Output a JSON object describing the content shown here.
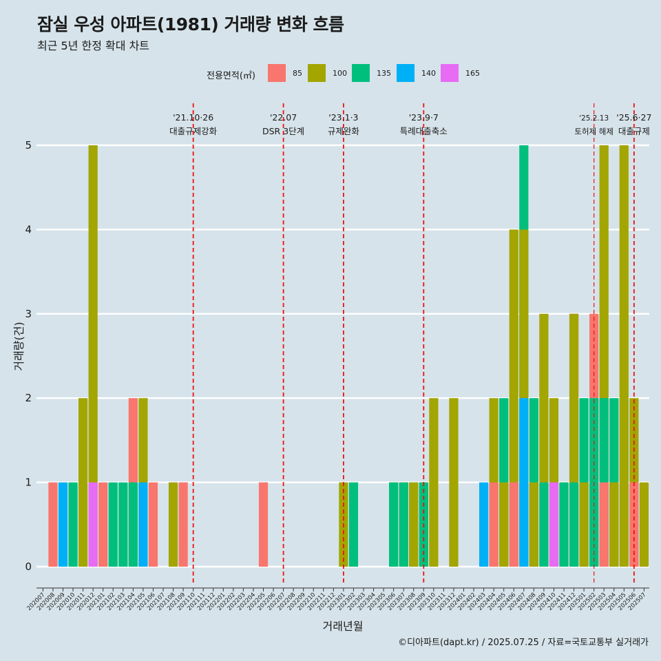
{
  "title": "잠실 우성 아파트(1981) 거래량 변화 흐름",
  "subtitle": "최근 5년 한정 확대 차트",
  "caption": "©디아파트(dapt.kr) / 2025.07.25 / 자료=국토교통부 실거래가",
  "legend": {
    "title": "전용면적(㎡)",
    "items": [
      {
        "label": "85",
        "color": "#F8766D"
      },
      {
        "label": "100",
        "color": "#A3A500"
      },
      {
        "label": "135",
        "color": "#00BF7D"
      },
      {
        "label": "140",
        "color": "#00B0F6"
      },
      {
        "label": "165",
        "color": "#E76BF3"
      }
    ]
  },
  "chart_data": {
    "type": "bar",
    "xlabel": "거래년월",
    "ylabel": "거래량(건)",
    "ylim": [
      -0.22,
      5.5
    ],
    "yticks": [
      0,
      1,
      2,
      3,
      4,
      5
    ],
    "grid": true,
    "legend_position": "top",
    "categories": [
      "202007",
      "202008",
      "202009",
      "202010",
      "202011",
      "202012",
      "202101",
      "202102",
      "202103",
      "202104",
      "202105",
      "202106",
      "202107",
      "202108",
      "202109",
      "202110",
      "202111",
      "202112",
      "202201",
      "202202",
      "202203",
      "202204",
      "202205",
      "202206",
      "202207",
      "202208",
      "202209",
      "202210",
      "202211",
      "202212",
      "202301",
      "202302",
      "202303",
      "202304",
      "202305",
      "202306",
      "202307",
      "202308",
      "202309",
      "202310",
      "202311",
      "202312",
      "202401",
      "202402",
      "202403",
      "202404",
      "202405",
      "202406",
      "202407",
      "202408",
      "202409",
      "202410",
      "202411",
      "202412",
      "202501",
      "202502",
      "202503",
      "202504",
      "202505",
      "202506",
      "202507"
    ],
    "bars": [
      {
        "month": "202008",
        "segments": [
          {
            "area": "85",
            "value": 1
          }
        ]
      },
      {
        "month": "202009",
        "segments": [
          {
            "area": "140",
            "value": 1
          }
        ]
      },
      {
        "month": "202010",
        "segments": [
          {
            "area": "135",
            "value": 1
          }
        ]
      },
      {
        "month": "202011",
        "segments": [
          {
            "area": "100",
            "value": 2
          }
        ]
      },
      {
        "month": "202012",
        "segments": [
          {
            "area": "100",
            "value": 5
          },
          {
            "area": "165",
            "value": 1
          }
        ]
      },
      {
        "month": "202101",
        "segments": [
          {
            "area": "85",
            "value": 1
          }
        ]
      },
      {
        "month": "202102",
        "segments": [
          {
            "area": "135",
            "value": 1
          }
        ]
      },
      {
        "month": "202103",
        "segments": [
          {
            "area": "135",
            "value": 1
          }
        ]
      },
      {
        "month": "202104",
        "segments": [
          {
            "area": "85",
            "value": 2
          },
          {
            "area": "135",
            "value": 1
          }
        ]
      },
      {
        "month": "202105",
        "segments": [
          {
            "area": "100",
            "value": 2
          },
          {
            "area": "140",
            "value": 1
          }
        ]
      },
      {
        "month": "202106",
        "segments": [
          {
            "area": "85",
            "value": 1
          }
        ]
      },
      {
        "month": "202108",
        "segments": [
          {
            "area": "100",
            "value": 1
          }
        ]
      },
      {
        "month": "202109",
        "segments": [
          {
            "area": "85",
            "value": 1
          }
        ]
      },
      {
        "month": "202205",
        "segments": [
          {
            "area": "85",
            "value": 1
          }
        ]
      },
      {
        "month": "202301",
        "segments": [
          {
            "area": "100",
            "value": 1
          }
        ]
      },
      {
        "month": "202302",
        "segments": [
          {
            "area": "135",
            "value": 1
          }
        ]
      },
      {
        "month": "202306",
        "segments": [
          {
            "area": "100",
            "value": 1
          },
          {
            "area": "135",
            "value": 1
          }
        ]
      },
      {
        "month": "202307",
        "segments": [
          {
            "area": "100",
            "value": 1
          },
          {
            "area": "135",
            "value": 1
          }
        ]
      },
      {
        "month": "202308",
        "segments": [
          {
            "area": "135",
            "value": 1
          },
          {
            "area": "100",
            "value": 1
          }
        ]
      },
      {
        "month": "202309",
        "segments": [
          {
            "area": "85",
            "value": 1
          },
          {
            "area": "135",
            "value": 1
          }
        ]
      },
      {
        "month": "202310",
        "segments": [
          {
            "area": "100",
            "value": 2
          }
        ]
      },
      {
        "month": "202312",
        "segments": [
          {
            "area": "100",
            "value": 2
          }
        ]
      },
      {
        "month": "202403",
        "segments": [
          {
            "area": "140",
            "value": 1
          }
        ]
      },
      {
        "month": "202404",
        "segments": [
          {
            "area": "85",
            "value": 1
          },
          {
            "area": "100",
            "value": 2
          }
        ]
      },
      {
        "month": "202405",
        "segments": [
          {
            "area": "100",
            "value": 1
          },
          {
            "area": "135",
            "value": 2
          }
        ]
      },
      {
        "month": "202406",
        "segments": [
          {
            "area": "85",
            "value": 1
          },
          {
            "area": "100",
            "value": 4
          }
        ]
      },
      {
        "month": "202407",
        "segments": [
          {
            "area": "85",
            "value": 2
          },
          {
            "area": "100",
            "value": 4
          },
          {
            "area": "135",
            "value": 5
          },
          {
            "area": "140",
            "value": 2
          }
        ]
      },
      {
        "month": "202408",
        "segments": [
          {
            "area": "100",
            "value": 1
          },
          {
            "area": "135",
            "value": 2
          }
        ]
      },
      {
        "month": "202409",
        "segments": [
          {
            "area": "100",
            "value": 3
          },
          {
            "area": "135",
            "value": 1
          }
        ]
      },
      {
        "month": "202410",
        "segments": [
          {
            "area": "100",
            "value": 2
          },
          {
            "area": "165",
            "value": 1
          }
        ]
      },
      {
        "month": "202411",
        "segments": [
          {
            "area": "100",
            "value": 1
          },
          {
            "area": "135",
            "value": 1
          }
        ]
      },
      {
        "month": "202412",
        "segments": [
          {
            "area": "85",
            "value": 3
          },
          {
            "area": "100",
            "value": 3
          },
          {
            "area": "135",
            "value": 1
          }
        ]
      },
      {
        "month": "202501",
        "segments": [
          {
            "area": "100",
            "value": 1
          },
          {
            "area": "135",
            "value": 2
          }
        ]
      },
      {
        "month": "202502",
        "segments": [
          {
            "area": "85",
            "value": 3
          },
          {
            "area": "135",
            "value": 2
          }
        ]
      },
      {
        "month": "202503",
        "segments": [
          {
            "area": "85",
            "value": 1
          },
          {
            "area": "100",
            "value": 5
          },
          {
            "area": "135",
            "value": 2
          }
        ]
      },
      {
        "month": "202504",
        "segments": [
          {
            "area": "85",
            "value": 1
          },
          {
            "area": "100",
            "value": 1
          },
          {
            "area": "135",
            "value": 2
          }
        ]
      },
      {
        "month": "202505",
        "segments": [
          {
            "area": "100",
            "value": 5
          }
        ]
      },
      {
        "month": "202506",
        "segments": [
          {
            "area": "85",
            "value": 1
          },
          {
            "area": "100",
            "value": 2
          }
        ]
      },
      {
        "month": "202507",
        "segments": [
          {
            "area": "100",
            "value": 1
          }
        ]
      }
    ],
    "events": [
      {
        "month": "202110",
        "date": "'21.10·26",
        "label": "대출규제강화"
      },
      {
        "month": "202207",
        "date": "'22.07",
        "label": "DSR 3단계"
      },
      {
        "month": "202301",
        "date": "'23.1·3",
        "label": "규제완화"
      },
      {
        "month": "202309",
        "date": "'23.9·7",
        "label": "특례대출축소"
      },
      {
        "month": "202502",
        "date": "'25.2.13",
        "label": "토허제 해제",
        "small": true
      },
      {
        "month": "202506",
        "date": "'25.6·27",
        "label": "대출규제"
      }
    ]
  }
}
